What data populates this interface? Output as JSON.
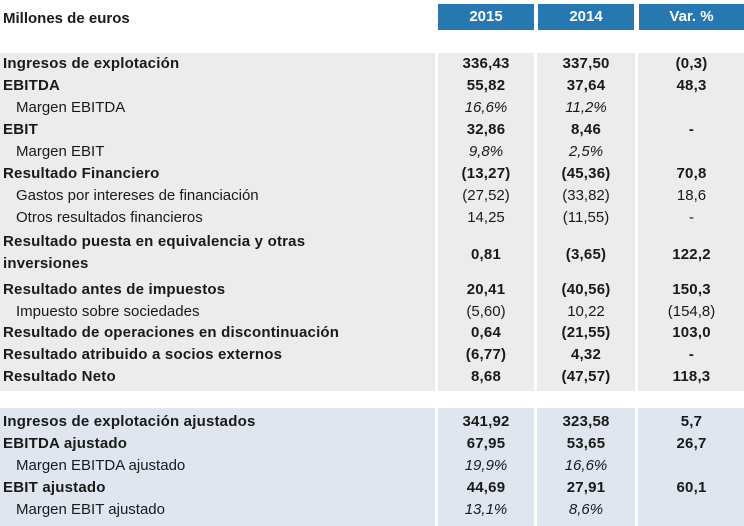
{
  "header": {
    "label": "Millones de euros",
    "col_2015": "2015",
    "col_2014": "2014",
    "col_var": "Var. %"
  },
  "colors": {
    "header_bg": "#2777b0",
    "band1_bg": "#ececec",
    "band2_bg": "#dfe6ef"
  },
  "rows": [
    {
      "label": "Ingresos de explotación",
      "v2015": "336,43",
      "v2014": "337,50",
      "var": "(0,3)"
    },
    {
      "label": "EBITDA",
      "v2015": "55,82",
      "v2014": "37,64",
      "var": "48,3"
    },
    {
      "label": "Margen EBITDA",
      "v2015": "16,6%",
      "v2014": "11,2%",
      "var": ""
    },
    {
      "label": "EBIT",
      "v2015": "32,86",
      "v2014": "8,46",
      "var": "-"
    },
    {
      "label": "Margen EBIT",
      "v2015": "9,8%",
      "v2014": "2,5%",
      "var": ""
    },
    {
      "label": "Resultado Financiero",
      "v2015": "(13,27)",
      "v2014": "(45,36)",
      "var": "70,8"
    },
    {
      "label": "Gastos por intereses de financiación",
      "v2015": "(27,52)",
      "v2014": "(33,82)",
      "var": "18,6"
    },
    {
      "label": "Otros resultados financieros",
      "v2015": "14,25",
      "v2014": "(11,55)",
      "var": "-"
    },
    {
      "label_line1": "Resultado puesta en equivalencia y otras",
      "label_line2": "inversiones",
      "v2015": "0,81",
      "v2014": "(3,65)",
      "var": "122,2"
    },
    {
      "label": "Resultado antes de impuestos",
      "v2015": "20,41",
      "v2014": "(40,56)",
      "var": "150,3"
    },
    {
      "label": "Impuesto sobre sociedades",
      "v2015": "(5,60)",
      "v2014": "10,22",
      "var": "(154,8)"
    },
    {
      "label": "Resultado de operaciones en discontinuación",
      "v2015": "0,64",
      "v2014": "(21,55)",
      "var": "103,0"
    },
    {
      "label": "Resultado atribuido a socios externos",
      "v2015": "(6,77)",
      "v2014": "4,32",
      "var": "-"
    },
    {
      "label": "Resultado Neto",
      "v2015": "8,68",
      "v2014": "(47,57)",
      "var": "118,3"
    }
  ],
  "adjusted": [
    {
      "label": "Ingresos de explotación ajustados",
      "v2015": "341,92",
      "v2014": "323,58",
      "var": "5,7"
    },
    {
      "label": "EBITDA ajustado",
      "v2015": "67,95",
      "v2014": "53,65",
      "var": "26,7"
    },
    {
      "label": "Margen EBITDA ajustado",
      "v2015": "19,9%",
      "v2014": "16,6%",
      "var": ""
    },
    {
      "label": "EBIT ajustado",
      "v2015": "44,69",
      "v2014": "27,91",
      "var": "60,1"
    },
    {
      "label": "Margen EBIT ajustado",
      "v2015": "13,1%",
      "v2014": "8,6%",
      "var": ""
    }
  ]
}
